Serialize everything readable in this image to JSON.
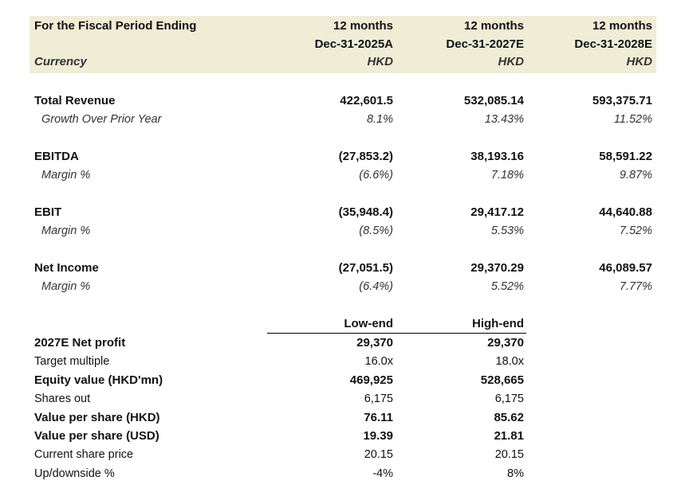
{
  "header": {
    "period_label": "For the Fiscal Period Ending",
    "currency_label": "Currency",
    "columns": [
      {
        "months": "12 months",
        "date": "Dec-31-2025A",
        "currency": "HKD"
      },
      {
        "months": "12 months",
        "date": "Dec-31-2027E",
        "currency": "HKD"
      },
      {
        "months": "12 months",
        "date": "Dec-31-2028E",
        "currency": "HKD"
      }
    ]
  },
  "financials": [
    {
      "label": "Total Revenue",
      "values": [
        "422,601.5",
        "532,085.14",
        "593,375.71"
      ],
      "sub_label": "Growth Over Prior Year",
      "sub_values": [
        "8.1%",
        "13.43%",
        "11.52%"
      ]
    },
    {
      "label": "EBITDA",
      "values": [
        "(27,853.2)",
        "38,193.16",
        "58,591.22"
      ],
      "sub_label": "Margin %",
      "sub_values": [
        "(6.6%)",
        "7.18%",
        "9.87%"
      ]
    },
    {
      "label": "EBIT",
      "values": [
        "(35,948.4)",
        "29,417.12",
        "44,640.88"
      ],
      "sub_label": "Margin %",
      "sub_values": [
        "(8.5%)",
        "5.53%",
        "7.52%"
      ]
    },
    {
      "label": "Net Income",
      "values": [
        "(27,051.5)",
        "29,370.29",
        "46,089.57"
      ],
      "sub_label": "Margin %",
      "sub_values": [
        "(6.4%)",
        "5.52%",
        "7.77%"
      ]
    }
  ],
  "valuation": {
    "columns": [
      "Low-end",
      "High-end"
    ],
    "rows": [
      {
        "label": "2027E Net profit",
        "values": [
          "29,370",
          "29,370"
        ]
      },
      {
        "label": "Target multiple",
        "values": [
          "16.0x",
          "18.0x"
        ]
      },
      {
        "label": "Equity value (HKD'mn)",
        "values": [
          "469,925",
          "528,665"
        ]
      },
      {
        "label": "Shares out",
        "values": [
          "6,175",
          "6,175"
        ]
      },
      {
        "label": "Value per share (HKD)",
        "values": [
          "76.11",
          "85.62"
        ]
      },
      {
        "label": "Value per share (USD)",
        "values": [
          "19.39",
          "21.81"
        ]
      },
      {
        "label": "Current share price",
        "values": [
          "20.15",
          "20.15"
        ]
      },
      {
        "label": "Up/downside %",
        "values": [
          "-4%",
          "8%"
        ]
      }
    ]
  }
}
